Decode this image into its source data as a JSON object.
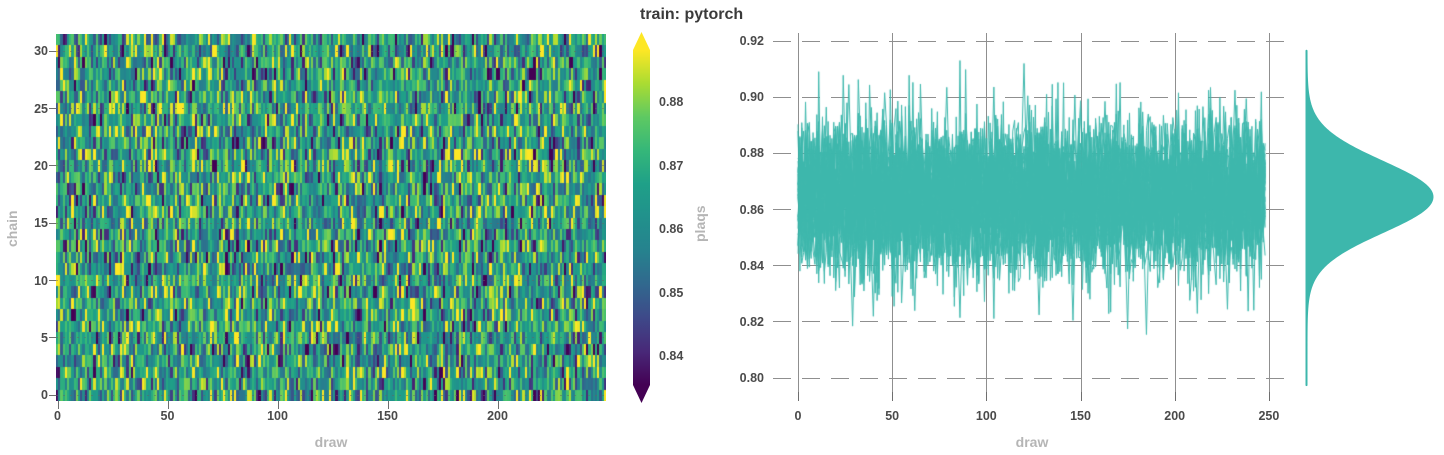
{
  "figure": {
    "title": "train: pytorch",
    "background": "#ffffff"
  },
  "palette": {
    "teal": "#3db7ac",
    "grid": "#8f8f8f",
    "tick_label_color": "#4a4a4a",
    "axis_label_color": "#b5b5b5",
    "title_color": "#3a3a3a",
    "viridis": [
      "#440154",
      "#482878",
      "#3e4989",
      "#31688e",
      "#26828e",
      "#21918c",
      "#1fa088",
      "#35b779",
      "#5ec962",
      "#aadc32",
      "#fde725"
    ]
  },
  "chart_data": [
    {
      "id": "chain-draw-heatmap",
      "type": "heatmap",
      "xlabel": "draw",
      "ylabel": "chain",
      "x_ticks": [
        0,
        50,
        100,
        150,
        200
      ],
      "y_ticks": [
        0,
        5,
        10,
        15,
        20,
        25,
        30
      ],
      "n_draws": 250,
      "n_chains": 32,
      "colormap": "viridis",
      "vmin": 0.8355,
      "vmax": 0.888,
      "value_mean": 0.8645,
      "value_std": 0.0145,
      "grid": "horizontal-faint-dashed",
      "seed": 1337
    },
    {
      "id": "colorbar",
      "type": "colorbar",
      "orientation": "vertical",
      "extend": "both",
      "colormap": "viridis",
      "ticks": [
        0.88,
        0.87,
        0.86,
        0.85,
        0.84
      ],
      "vmin": 0.8355,
      "vmax": 0.888
    },
    {
      "id": "plaqs-trace",
      "type": "line",
      "title": "train: pytorch",
      "xlabel": "draw",
      "ylabel": "plaqs",
      "x_ticks": [
        0,
        50,
        100,
        150,
        200,
        250
      ],
      "y_ticks": [
        0.92,
        0.9,
        0.88,
        0.86,
        0.84,
        0.82,
        0.8
      ],
      "xlim": [
        -13,
        262
      ],
      "ylim": [
        0.795,
        0.923
      ],
      "grid": "vertical-solid-horizontal-dashed",
      "n_chains": 32,
      "n_draws": 249,
      "mean": 0.8645,
      "std": 0.0127,
      "dense_band": [
        0.84,
        0.889
      ],
      "seed": 20,
      "extremes": [
        {
          "draw": 27,
          "value": 0.9045
        },
        {
          "draw": 29,
          "value": 0.8185
        },
        {
          "draw": 40,
          "value": 0.822
        },
        {
          "draw": 62,
          "value": 0.824
        },
        {
          "draw": 79,
          "value": 0.9035
        },
        {
          "draw": 86,
          "value": 0.8215
        },
        {
          "draw": 120,
          "value": 0.912
        },
        {
          "draw": 122,
          "value": 0.9005
        },
        {
          "draw": 128,
          "value": 0.8225
        },
        {
          "draw": 146,
          "value": 0.8205
        },
        {
          "draw": 150,
          "value": 0.897
        },
        {
          "draw": 163,
          "value": 0.8985
        },
        {
          "draw": 175,
          "value": 0.8175
        },
        {
          "draw": 185,
          "value": 0.8155
        },
        {
          "draw": 212,
          "value": 0.823
        },
        {
          "draw": 228,
          "value": 0.8245
        },
        {
          "draw": 232,
          "value": 0.9025
        },
        {
          "draw": 238,
          "value": 0.8995
        }
      ]
    },
    {
      "id": "plaqs-marginal-kde",
      "type": "area",
      "orientation": "horizontal-right",
      "mean": 0.8645,
      "std": 0.0125,
      "peak_at": 0.8645,
      "support": [
        0.7975,
        0.9165
      ]
    }
  ]
}
